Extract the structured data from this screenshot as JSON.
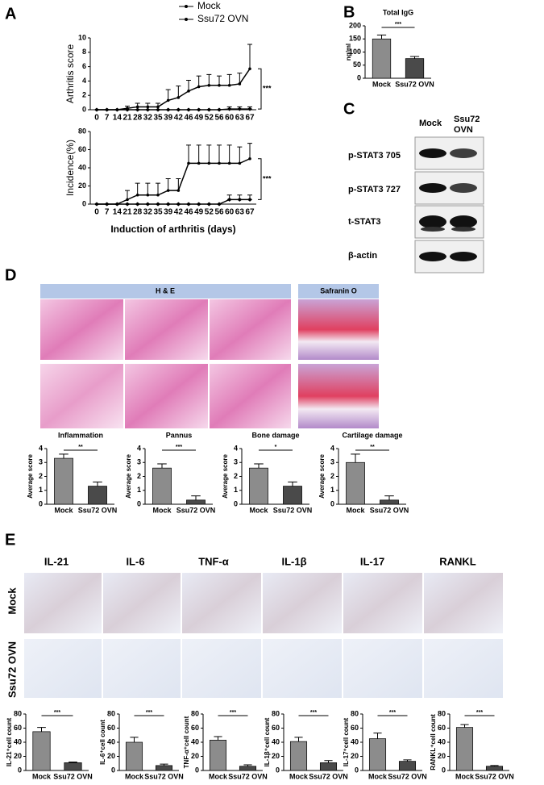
{
  "panel_letters": [
    "A",
    "B",
    "C",
    "D",
    "E"
  ],
  "western_blot": {
    "lanes": [
      "Mock",
      "Ssu72 OVN"
    ],
    "proteins": [
      "p-STAT3 705",
      "p-STAT3 727",
      "t-STAT3",
      "β-actin"
    ]
  },
  "histology": {
    "stains": [
      "H & E",
      "Safranin O"
    ]
  },
  "ihc": {
    "markers": [
      "IL-21",
      "IL-6",
      "TNF-α",
      "IL-1β",
      "IL-17",
      "RANKL"
    ],
    "groups": [
      "Mock",
      "Ssu72 OVN"
    ]
  },
  "chart_data": [
    {
      "type": "line",
      "ylabel": "Arthritis score",
      "categories": [
        "0",
        "7",
        "14",
        "21",
        "28",
        "32",
        "35",
        "39",
        "42",
        "46",
        "49",
        "52",
        "56",
        "60",
        "63",
        "67"
      ],
      "series": [
        {
          "name": "Mock",
          "color": "#000000",
          "values": [
            0,
            0,
            0,
            0.2,
            0.4,
            0.4,
            0.4,
            1.3,
            1.7,
            2.6,
            3.2,
            3.4,
            3.4,
            3.4,
            3.6,
            5.7
          ],
          "errors": [
            0,
            0,
            0,
            0.3,
            0.5,
            0.5,
            0.5,
            1.5,
            1.6,
            1.5,
            1.5,
            1.5,
            1.3,
            1.5,
            1.5,
            3.4
          ]
        },
        {
          "name": "Ssu72 OVN",
          "color": "#000000",
          "values": [
            0,
            0,
            0,
            0,
            0,
            0,
            0,
            0,
            0,
            0,
            0,
            0,
            0,
            0.1,
            0.1,
            0.1
          ],
          "errors": [
            0,
            0,
            0,
            0,
            0,
            0,
            0,
            0,
            0,
            0,
            0,
            0,
            0,
            0.3,
            0.3,
            0.3
          ]
        }
      ],
      "ylim": [
        0,
        10
      ],
      "yticks": [
        0,
        2,
        4,
        6,
        8,
        10
      ],
      "annotation": "***"
    },
    {
      "type": "line",
      "ylabel": "Incidence(%)",
      "xlabel": "Induction of arthritis (days)",
      "categories": [
        "0",
        "7",
        "14",
        "21",
        "28",
        "32",
        "35",
        "39",
        "42",
        "46",
        "49",
        "52",
        "56",
        "60",
        "63",
        "67"
      ],
      "series": [
        {
          "color": "#000000",
          "values": [
            0,
            0,
            0,
            5,
            10,
            10,
            10,
            15,
            15,
            45,
            45,
            45,
            45,
            45,
            45,
            50
          ],
          "errors": [
            0,
            0,
            0,
            10,
            13,
            13,
            13,
            13,
            13,
            20,
            20,
            20,
            20,
            20,
            18,
            17
          ]
        },
        {
          "color": "#000000",
          "values": [
            0,
            0,
            0,
            0,
            0,
            0,
            0,
            0,
            0,
            0,
            0,
            0,
            0,
            5,
            5,
            5
          ],
          "errors": [
            0,
            0,
            0,
            0,
            0,
            0,
            0,
            0,
            0,
            0,
            0,
            0,
            0,
            5,
            5,
            5
          ]
        }
      ],
      "ylim": [
        0,
        80
      ],
      "yticks": [
        0,
        20,
        40,
        60,
        80
      ],
      "annotation": "***"
    },
    {
      "type": "bar",
      "title": "Total IgG",
      "ylabel": "ng/ml",
      "categories": [
        "Mock",
        "Ssu72 OVN"
      ],
      "values": [
        150,
        75
      ],
      "errors": [
        15,
        8
      ],
      "colors": [
        "#8c8c8c",
        "#4a4a4a"
      ],
      "ylim": [
        0,
        200
      ],
      "yticks": [
        0,
        50,
        100,
        150,
        200
      ],
      "annotation": "***"
    },
    {
      "type": "bar",
      "title": "Inflammation",
      "ylabel": "Average score",
      "categories": [
        "Mock",
        "Ssu72 OVN"
      ],
      "values": [
        3.3,
        1.3
      ],
      "errors": [
        0.3,
        0.3
      ],
      "colors": [
        "#8c8c8c",
        "#4a4a4a"
      ],
      "ylim": [
        0,
        4
      ],
      "yticks": [
        0,
        1,
        2,
        3,
        4
      ],
      "annotation": "**"
    },
    {
      "type": "bar",
      "title": "Pannus",
      "ylabel": "Average score",
      "categories": [
        "Mock",
        "Ssu72 OVN"
      ],
      "values": [
        2.6,
        0.3
      ],
      "errors": [
        0.3,
        0.3
      ],
      "colors": [
        "#8c8c8c",
        "#4a4a4a"
      ],
      "ylim": [
        0,
        4
      ],
      "yticks": [
        0,
        1,
        2,
        3,
        4
      ],
      "annotation": "***"
    },
    {
      "type": "bar",
      "title": "Bone damage",
      "ylabel": "Average score",
      "categories": [
        "Mock",
        "Ssu72 OVN"
      ],
      "values": [
        2.6,
        1.3
      ],
      "errors": [
        0.3,
        0.3
      ],
      "colors": [
        "#8c8c8c",
        "#4a4a4a"
      ],
      "ylim": [
        0,
        4
      ],
      "yticks": [
        0,
        1,
        2,
        3,
        4
      ],
      "annotation": "*"
    },
    {
      "type": "bar",
      "title": "Cartilage damage",
      "ylabel": "Average score",
      "categories": [
        "Mock",
        "Ssu72 OVN"
      ],
      "values": [
        3.0,
        0.3
      ],
      "errors": [
        0.6,
        0.3
      ],
      "colors": [
        "#8c8c8c",
        "#4a4a4a"
      ],
      "ylim": [
        0,
        4
      ],
      "yticks": [
        0,
        1,
        2,
        3,
        4
      ],
      "annotation": "**"
    },
    {
      "type": "bar",
      "ylabel": "IL-21⁺cell count",
      "categories": [
        "Mock",
        "Ssu72 OVN"
      ],
      "values": [
        55,
        11
      ],
      "errors": [
        6,
        1
      ],
      "colors": [
        "#8c8c8c",
        "#4a4a4a"
      ],
      "ylim": [
        0,
        80
      ],
      "yticks": [
        0,
        20,
        40,
        60,
        80
      ],
      "annotation": "***"
    },
    {
      "type": "bar",
      "ylabel": "IL-6⁺cell count",
      "categories": [
        "Mock",
        "Ssu72 OVN"
      ],
      "values": [
        40,
        7
      ],
      "errors": [
        7,
        2
      ],
      "colors": [
        "#8c8c8c",
        "#4a4a4a"
      ],
      "ylim": [
        0,
        80
      ],
      "yticks": [
        0,
        20,
        40,
        60,
        80
      ],
      "annotation": "***"
    },
    {
      "type": "bar",
      "ylabel": "TNF-α⁺cell count",
      "categories": [
        "Mock",
        "Ssu72 OVN"
      ],
      "values": [
        43,
        6
      ],
      "errors": [
        5,
        2
      ],
      "colors": [
        "#8c8c8c",
        "#4a4a4a"
      ],
      "ylim": [
        0,
        80
      ],
      "yticks": [
        0,
        20,
        40,
        60,
        80
      ],
      "annotation": "***"
    },
    {
      "type": "bar",
      "ylabel": "IL-1β⁺cell count",
      "categories": [
        "Mock",
        "Ssu72 OVN"
      ],
      "values": [
        41,
        11
      ],
      "errors": [
        6,
        3
      ],
      "colors": [
        "#8c8c8c",
        "#4a4a4a"
      ],
      "ylim": [
        0,
        80
      ],
      "yticks": [
        0,
        20,
        40,
        60,
        80
      ],
      "annotation": "***"
    },
    {
      "type": "bar",
      "ylabel": "IL-17⁺cell count",
      "categories": [
        "Mock",
        "Ssu72 OVN"
      ],
      "values": [
        45,
        13
      ],
      "errors": [
        8,
        2
      ],
      "colors": [
        "#8c8c8c",
        "#4a4a4a"
      ],
      "ylim": [
        0,
        80
      ],
      "yticks": [
        0,
        20,
        40,
        60,
        80
      ],
      "annotation": "***"
    },
    {
      "type": "bar",
      "ylabel": "RANKL⁺cell count",
      "categories": [
        "Mock",
        "Ssu72 OVN"
      ],
      "values": [
        61,
        6
      ],
      "errors": [
        4,
        1
      ],
      "colors": [
        "#8c8c8c",
        "#4a4a4a"
      ],
      "ylim": [
        0,
        80
      ],
      "yticks": [
        0,
        20,
        40,
        60,
        80
      ],
      "annotation": "***"
    }
  ]
}
